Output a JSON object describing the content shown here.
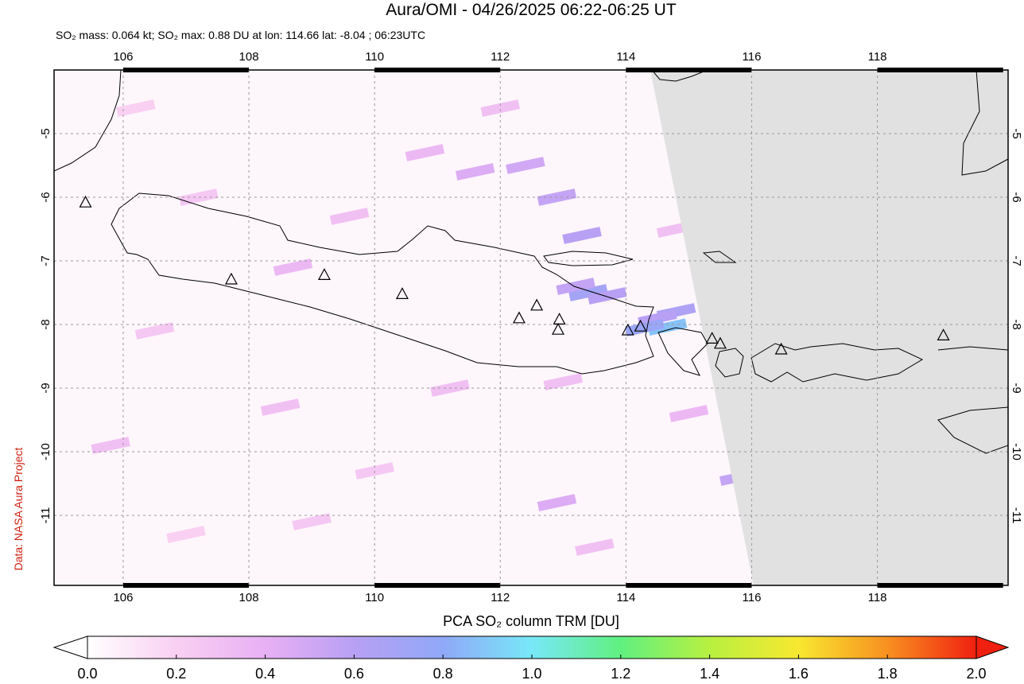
{
  "chart_data": {
    "type": "map",
    "title": "Aura/OMI - 04/26/2025 06:22-06:25 UT",
    "subtitle": "SO₂ mass: 0.064 kt; SO₂ max: 0.88 DU at lon: 114.66 lat: -8.04 ; 06:23UTC",
    "credit": "Data: NASA Aura Project",
    "xlim": [
      104.9,
      120.08
    ],
    "ylim": [
      -12.1,
      -4
    ],
    "xticks": [
      106,
      108,
      110,
      112,
      114,
      116,
      118
    ],
    "yticks": [
      -5,
      -6,
      -7,
      -8,
      -9,
      -10,
      -11
    ],
    "grid": true,
    "no_data_color": "#e1e1e1",
    "volcano_color": "#000000",
    "volcanoes": [
      {
        "lon": 105.4,
        "lat": -6.09
      },
      {
        "lon": 107.72,
        "lat": -7.3
      },
      {
        "lon": 109.2,
        "lat": -7.23
      },
      {
        "lon": 110.44,
        "lat": -7.53
      },
      {
        "lon": 112.3,
        "lat": -7.91
      },
      {
        "lon": 112.58,
        "lat": -7.71
      },
      {
        "lon": 112.94,
        "lat": -7.93
      },
      {
        "lon": 112.92,
        "lat": -8.09
      },
      {
        "lon": 114.03,
        "lat": -8.1
      },
      {
        "lon": 114.23,
        "lat": -8.04
      },
      {
        "lon": 115.37,
        "lat": -8.23
      },
      {
        "lon": 115.5,
        "lat": -8.31
      },
      {
        "lon": 116.47,
        "lat": -8.4
      },
      {
        "lon": 119.05,
        "lat": -8.18
      }
    ],
    "so2_pixels": [
      {
        "lon": 113.4,
        "lat": -7.5,
        "value": 0.7
      },
      {
        "lon": 113.2,
        "lat": -7.4,
        "value": 0.55
      },
      {
        "lon": 113.7,
        "lat": -7.55,
        "value": 0.6
      },
      {
        "lon": 114.8,
        "lat": -7.8,
        "value": 0.65
      },
      {
        "lon": 114.5,
        "lat": -7.9,
        "value": 0.6
      },
      {
        "lon": 114.66,
        "lat": -8.04,
        "value": 0.88
      },
      {
        "lon": 114.3,
        "lat": -8.05,
        "value": 0.75
      },
      {
        "lon": 112.9,
        "lat": -6.0,
        "value": 0.55
      },
      {
        "lon": 113.3,
        "lat": -6.6,
        "value": 0.6
      },
      {
        "lon": 112.4,
        "lat": -5.5,
        "value": 0.5
      },
      {
        "lon": 111.6,
        "lat": -5.6,
        "value": 0.45
      },
      {
        "lon": 110.8,
        "lat": -5.3,
        "value": 0.35
      },
      {
        "lon": 109.6,
        "lat": -6.3,
        "value": 0.3
      },
      {
        "lon": 108.7,
        "lat": -7.1,
        "value": 0.35
      },
      {
        "lon": 107.2,
        "lat": -6.0,
        "value": 0.25
      },
      {
        "lon": 106.5,
        "lat": -8.1,
        "value": 0.25
      },
      {
        "lon": 105.8,
        "lat": -9.9,
        "value": 0.3
      },
      {
        "lon": 112.9,
        "lat": -10.8,
        "value": 0.45
      },
      {
        "lon": 115.8,
        "lat": -10.4,
        "value": 0.55
      },
      {
        "lon": 113.5,
        "lat": -11.5,
        "value": 0.3
      },
      {
        "lon": 109.0,
        "lat": -11.1,
        "value": 0.25
      },
      {
        "lon": 107.0,
        "lat": -11.3,
        "value": 0.2
      },
      {
        "lon": 111.2,
        "lat": -9.0,
        "value": 0.3
      },
      {
        "lon": 113.0,
        "lat": -8.9,
        "value": 0.3
      },
      {
        "lon": 115.0,
        "lat": -9.4,
        "value": 0.35
      },
      {
        "lon": 108.5,
        "lat": -9.3,
        "value": 0.3
      },
      {
        "lon": 110.0,
        "lat": -10.3,
        "value": 0.25
      },
      {
        "lon": 112.0,
        "lat": -4.6,
        "value": 0.3
      },
      {
        "lon": 106.2,
        "lat": -4.6,
        "value": 0.2
      },
      {
        "lon": 114.8,
        "lat": -6.5,
        "value": 0.3
      }
    ],
    "colorbar": {
      "label": "PCA SO₂ column TRM [DU]",
      "lim": [
        0,
        2
      ],
      "ticks": [
        {
          "value": 0,
          "label": "0.0"
        },
        {
          "value": 0.2,
          "label": "0.2"
        },
        {
          "value": 0.4,
          "label": "0.4"
        },
        {
          "value": 0.6,
          "label": "0.6"
        },
        {
          "value": 0.8,
          "label": "0.8"
        },
        {
          "value": 1,
          "label": "1.0"
        },
        {
          "value": 1.2,
          "label": "1.2"
        },
        {
          "value": 1.4,
          "label": "1.4"
        },
        {
          "value": 1.6,
          "label": "1.6"
        },
        {
          "value": 1.8,
          "label": "1.8"
        },
        {
          "value": 2,
          "label": "2.0"
        }
      ],
      "colors": [
        "#ffffff",
        "#f9d0f2",
        "#e8b0f4",
        "#b8a0f4",
        "#90a8f8",
        "#78e8f8",
        "#60f080",
        "#b8f040",
        "#f8e830",
        "#f89020",
        "#f02010"
      ]
    }
  }
}
